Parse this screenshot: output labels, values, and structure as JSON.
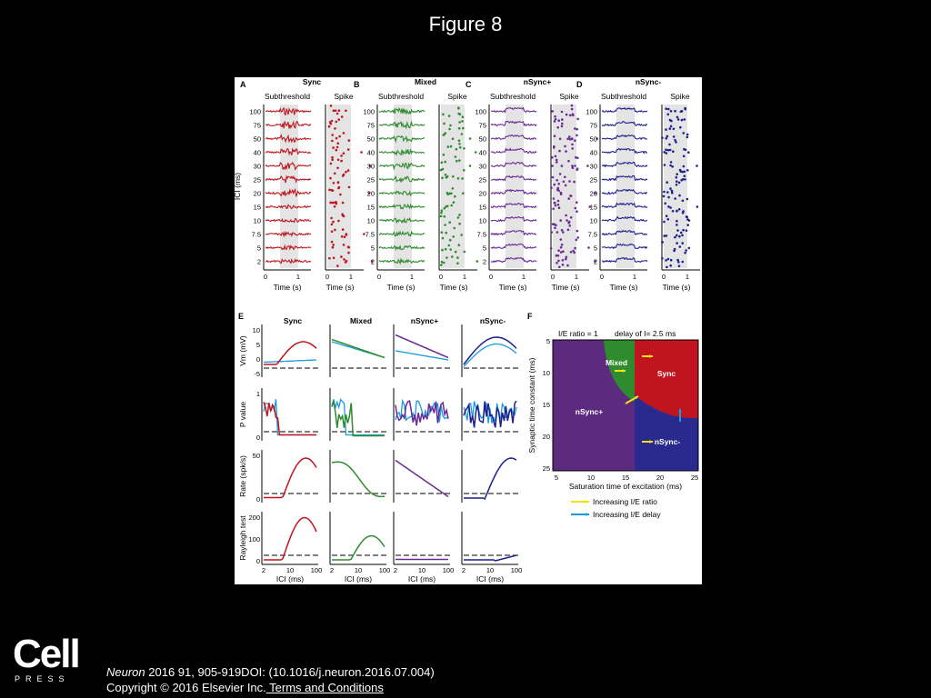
{
  "page": {
    "title": "Figure 8"
  },
  "figure": {
    "panels": [
      {
        "letter": "A",
        "condition": "Sync",
        "color": "#c0141e"
      },
      {
        "letter": "B",
        "condition": "Mixed",
        "color": "#2e8b2e"
      },
      {
        "letter": "C",
        "condition": "nSync+",
        "color": "#6a2a96"
      },
      {
        "letter": "D",
        "condition": "nSync-",
        "color": "#1f1f8c"
      }
    ],
    "sub_titles": {
      "subthreshold": "Subthreshold",
      "spike": "Spike"
    },
    "ici_axis_label": "ICI (ms)",
    "ici_ticks": [
      "100",
      "75",
      "50",
      "40",
      "30",
      "25",
      "20",
      "15",
      "10",
      "7.5",
      "5",
      "2"
    ],
    "time_axis_label": "Time (s)",
    "time_ticks": [
      "0",
      "1"
    ],
    "panel_e": {
      "letter": "E",
      "columns": [
        "Sync",
        "Mixed",
        "nSync+",
        "nSync-"
      ],
      "rows": [
        {
          "label": "Vm (mV)",
          "ticks": [
            "10",
            "5",
            "0",
            "-5"
          ]
        },
        {
          "label": "P value",
          "ticks": [
            "1",
            "0"
          ]
        },
        {
          "label": "Rate (spk/s)",
          "ticks": [
            "50",
            "0"
          ]
        },
        {
          "label": "Rayleigh test",
          "ticks": [
            "200",
            "100",
            "0"
          ]
        }
      ],
      "x_label": "ICI (ms)",
      "x_ticks": [
        "2",
        "10",
        "100"
      ],
      "secondary_color": "#1a9bdc"
    },
    "panel_f": {
      "letter": "F",
      "header_left": "I/E ratio = 1",
      "header_right": "delay of I= 2.5 ms",
      "y_label": "Synaptic time constant (ms)",
      "y_ticks": [
        "5",
        "10",
        "15",
        "20",
        "25"
      ],
      "x_label": "Saturation time of excitation (ms)",
      "x_ticks": [
        "5",
        "10",
        "15",
        "20",
        "25"
      ],
      "regions": [
        "Mixed",
        "Sync",
        "nSync+",
        "nSync-"
      ],
      "legend": [
        {
          "label": "Increasing I/E ratio",
          "color": "#f2e21a"
        },
        {
          "label": "Increasing I/E delay",
          "color": "#1a9bdc"
        }
      ]
    }
  },
  "footer": {
    "logo_text": "Cell",
    "logo_sub": "PRESS",
    "citation_journal": "Neuron",
    "citation_rest": " 2016 91, 905-919DOI: (10.1016/j.neuron.2016.07.004)",
    "copyright": "Copyright © 2016 Elsevier Inc.",
    "terms_link": " Terms and Conditions"
  }
}
